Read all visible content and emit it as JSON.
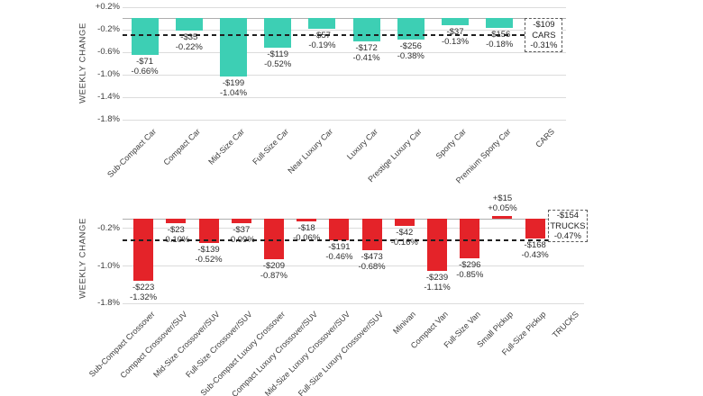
{
  "chart_data": [
    {
      "type": "bar",
      "title": "CARS",
      "ylabel": "WEEKLY CHANGE",
      "bar_color": "#3dcfb4",
      "grid": true,
      "ylim": [
        -1.8,
        0.2
      ],
      "yticks": [
        {
          "value": 0.2,
          "label": "+0.2%"
        },
        {
          "value": -0.2,
          "label": "-0.2%"
        },
        {
          "value": -0.6,
          "label": "-0.6%"
        },
        {
          "value": -1.0,
          "label": "-1.0%"
        },
        {
          "value": -1.4,
          "label": "-1.4%"
        },
        {
          "value": -1.8,
          "label": "-1.8%"
        }
      ],
      "bars": [
        {
          "category": "Sub-Compact Car",
          "pct": -0.66,
          "pct_label": "-0.66%",
          "dollar_label": "-$71"
        },
        {
          "category": "Compact Car",
          "pct": -0.22,
          "pct_label": "-0.22%",
          "dollar_label": "-$35"
        },
        {
          "category": "Mid-Size Car",
          "pct": -1.04,
          "pct_label": "-1.04%",
          "dollar_label": "-$199"
        },
        {
          "category": "Full-Size Car",
          "pct": -0.52,
          "pct_label": "-0.52%",
          "dollar_label": "-$119"
        },
        {
          "category": "Near Luxury Car",
          "pct": -0.19,
          "pct_label": "-0.19%",
          "dollar_label": "-$57"
        },
        {
          "category": "Luxury Car",
          "pct": -0.41,
          "pct_label": "-0.41%",
          "dollar_label": "-$172"
        },
        {
          "category": "Prestige Luxury Car",
          "pct": -0.38,
          "pct_label": "-0.38%",
          "dollar_label": "-$256"
        },
        {
          "category": "Sporty Car",
          "pct": -0.13,
          "pct_label": "-0.13%",
          "dollar_label": "-$37"
        },
        {
          "category": "Premium Sporty Car",
          "pct": -0.18,
          "pct_label": "-0.18%",
          "dollar_label": "-$156"
        }
      ],
      "average": {
        "category": "CARS",
        "pct": -0.31,
        "pct_label": "-0.31%",
        "dollar_label": "-$109"
      }
    },
    {
      "type": "bar",
      "title": "TRUCKS",
      "ylabel": "WEEKLY CHANGE",
      "bar_color": "#e42329",
      "grid": true,
      "ylim": [
        -1.8,
        0.2
      ],
      "yticks": [
        {
          "value": -0.2,
          "label": "-0.2%"
        },
        {
          "value": -1.0,
          "label": "-1.0%"
        },
        {
          "value": -1.8,
          "label": "-1.8%"
        }
      ],
      "bars": [
        {
          "category": "Sub-Compact Crossover",
          "pct": -1.32,
          "pct_label": "-1.32%",
          "dollar_label": "-$223"
        },
        {
          "category": "Compact Crossover/SUV",
          "pct": -0.1,
          "pct_label": "-0.10%",
          "dollar_label": "-$23"
        },
        {
          "category": "Mid-Size Crossover/SUV",
          "pct": -0.52,
          "pct_label": "-0.52%",
          "dollar_label": "-$139"
        },
        {
          "category": "Full-Size Crossover/SUV",
          "pct": -0.09,
          "pct_label": "-0.09%",
          "dollar_label": "-$37"
        },
        {
          "category": "Sub-Compact Luxury Crossover",
          "pct": -0.87,
          "pct_label": "-0.87%",
          "dollar_label": "-$209"
        },
        {
          "category": "Compact Luxury Crossover/SUV",
          "pct": -0.06,
          "pct_label": "-0.06%",
          "dollar_label": "-$18"
        },
        {
          "category": "Mid-Size Luxury Crossover/SUV",
          "pct": -0.46,
          "pct_label": "-0.46%",
          "dollar_label": "-$191"
        },
        {
          "category": "Full-Size Luxury Crossover/SUV",
          "pct": -0.68,
          "pct_label": "-0.68%",
          "dollar_label": "-$473"
        },
        {
          "category": "Minivan",
          "pct": -0.16,
          "pct_label": "-0.16%",
          "dollar_label": "-$42"
        },
        {
          "category": "Compact Van",
          "pct": -1.11,
          "pct_label": "-1.11%",
          "dollar_label": "-$239"
        },
        {
          "category": "Full-Size Van",
          "pct": -0.85,
          "pct_label": "-0.85%",
          "dollar_label": "-$296"
        },
        {
          "category": "Small Pickup",
          "pct": 0.05,
          "pct_label": "+0.05%",
          "dollar_label": "+$15"
        },
        {
          "category": "Full-Size Pickup",
          "pct": -0.43,
          "pct_label": "-0.43%",
          "dollar_label": "-$168"
        }
      ],
      "average": {
        "category": "TRUCKS",
        "pct": -0.47,
        "pct_label": "-0.47%",
        "dollar_label": "-$154"
      }
    }
  ]
}
